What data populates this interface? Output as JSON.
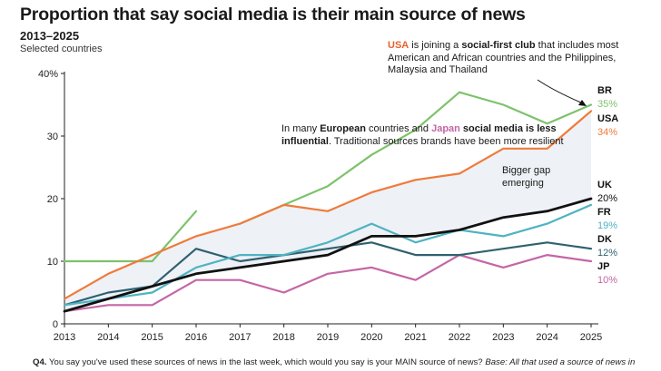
{
  "title": "Proportion that say social media is their main source of news",
  "subtitle": "2013–2025",
  "subnote": "Selected countries",
  "annotations": {
    "usa": {
      "country": "USA",
      "t1": " is joining a ",
      "bold": "social-first club",
      "t2": " that includes most American and African countries and the Philippines, Malaysia and Thailand"
    },
    "europe": {
      "t1": "In many ",
      "bold1": "European",
      "t2": " countries and ",
      "japan": "Japan",
      "bold2": " social media is less influential",
      "t3": ". Traditional sources brands have been more resilient"
    },
    "gap": "Bigger gap emerging"
  },
  "footnote": {
    "prefix": "Q4.",
    "text": " You say you've used these sources of news in the last week, which would you say is your MAIN source of news? ",
    "italic": "Base: All that used a source of news in"
  },
  "colors": {
    "BR": "#7dc26b",
    "USA": "#f07a3a",
    "UK": "#111111",
    "FR": "#4fb3c1",
    "DK": "#2f6170",
    "JP": "#c466a5",
    "gap_fill": "#eef1f6",
    "axis": "#222222",
    "usa_label": "#e8602c",
    "japan_label": "#c466a5"
  },
  "chart_data": {
    "type": "line",
    "x": [
      2013,
      2014,
      2015,
      2016,
      2017,
      2018,
      2019,
      2020,
      2021,
      2022,
      2023,
      2024,
      2025
    ],
    "ylim": [
      0,
      40
    ],
    "yticks": [
      0,
      10,
      20,
      30,
      40
    ],
    "ytick_labels": [
      "0",
      "10",
      "20",
      "30",
      "40%"
    ],
    "xtick_labels": [
      "2013",
      "2014",
      "2015",
      "2016",
      "2017",
      "2018",
      "2019",
      "2020",
      "2021",
      "2022",
      "2023",
      "2024",
      "2025"
    ],
    "series": [
      {
        "name": "BR",
        "label": "35%",
        "values": [
          10,
          10,
          10,
          18,
          16,
          19,
          22,
          27,
          31,
          37,
          35,
          32,
          35
        ],
        "gaps": [
          4
        ]
      },
      {
        "name": "USA",
        "label": "34%",
        "values": [
          4,
          8,
          11,
          14,
          16,
          19,
          18,
          21,
          23,
          24,
          28,
          28,
          34
        ]
      },
      {
        "name": "UK",
        "label": "20%",
        "values": [
          2,
          4,
          6,
          8,
          9,
          10,
          11,
          14,
          14,
          15,
          17,
          18,
          20
        ]
      },
      {
        "name": "FR",
        "label": "19%",
        "values": [
          3,
          4,
          5,
          9,
          11,
          11,
          13,
          16,
          13,
          15,
          14,
          16,
          19
        ]
      },
      {
        "name": "DK",
        "label": "12%",
        "values": [
          3,
          5,
          6,
          12,
          10,
          11,
          12,
          13,
          11,
          11,
          12,
          13,
          12
        ]
      },
      {
        "name": "JP",
        "label": "10%",
        "values": [
          2,
          3,
          3,
          7,
          7,
          5,
          8,
          9,
          7,
          11,
          9,
          11,
          10
        ]
      }
    ]
  }
}
